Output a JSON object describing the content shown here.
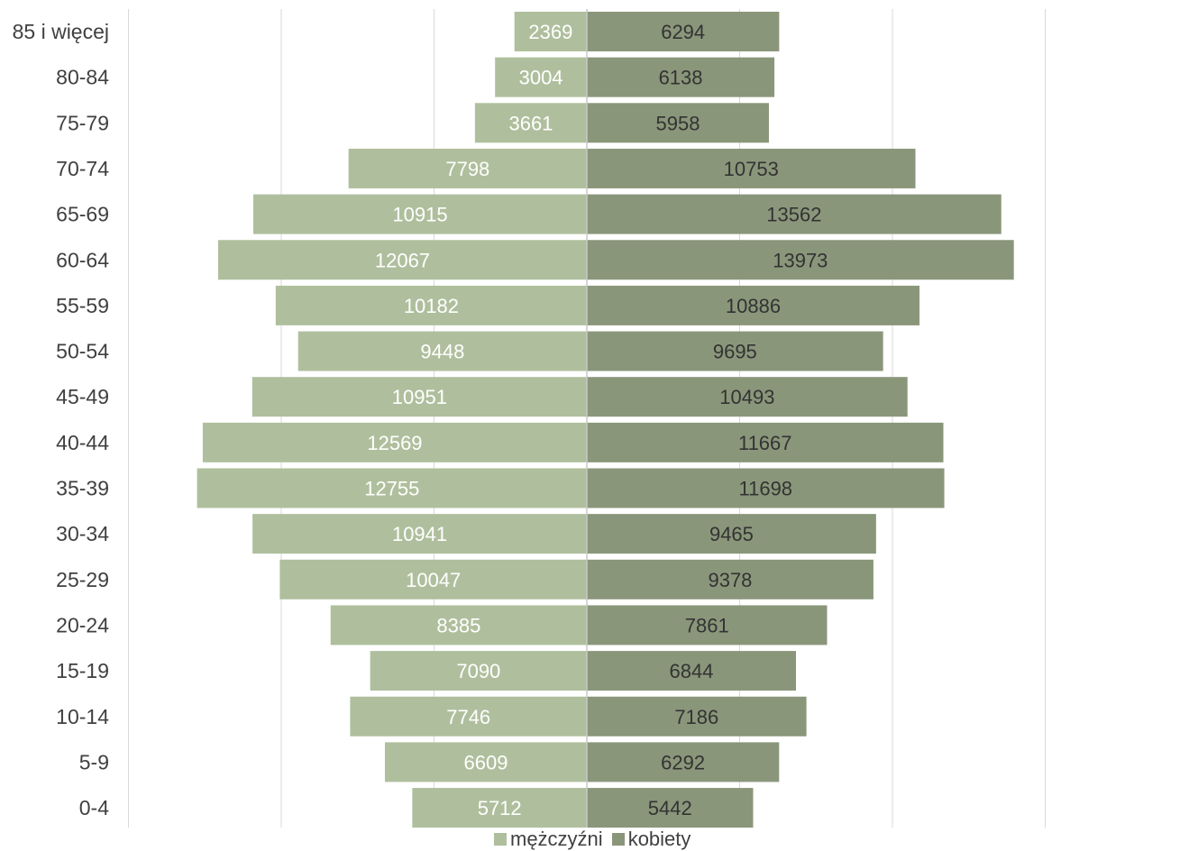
{
  "chart_data": {
    "type": "bar",
    "orientation": "horizontal",
    "layout": "population-pyramid",
    "categories": [
      "85 i więcej",
      "80-84",
      "75-79",
      "70-74",
      "65-69",
      "60-64",
      "55-59",
      "50-54",
      "45-49",
      "40-44",
      "35-39",
      "30-34",
      "25-29",
      "20-24",
      "15-19",
      "10-14",
      "5-9",
      "0-4"
    ],
    "series": [
      {
        "name": "mężczyźni",
        "color": "#afbf9d",
        "label_color": "#ffffff",
        "values": [
          2369,
          3004,
          3661,
          7798,
          10915,
          12067,
          10182,
          9448,
          10951,
          12569,
          12755,
          10941,
          10047,
          8385,
          7090,
          7746,
          6609,
          5712
        ]
      },
      {
        "name": "kobiety",
        "color": "#8a967a",
        "label_color": "#333333",
        "values": [
          6294,
          6138,
          5958,
          10753,
          13562,
          13973,
          10886,
          9695,
          10493,
          11667,
          11698,
          9465,
          9378,
          7861,
          6844,
          7186,
          6292,
          5442
        ]
      }
    ],
    "xlim": [
      -15000,
      15000
    ],
    "grid": true,
    "legend_position": "bottom"
  }
}
